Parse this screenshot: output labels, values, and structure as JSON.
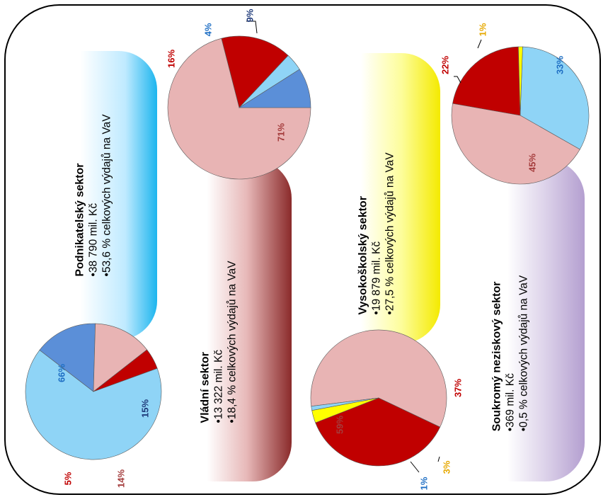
{
  "chart_data": [
    {
      "type": "pie",
      "title": "Podnikatelský sektor",
      "lines": [
        "•38 790 mil. Kč",
        "•53,6 % celkových výdajů na VaV"
      ],
      "slices": [
        {
          "value": 66,
          "label": "66%",
          "color": "#8fd4f6",
          "label_color": "#1f6fc4"
        },
        {
          "value": 15,
          "label": "15%",
          "color": "#5b8fd8",
          "label_color": "#1f3a7a"
        },
        {
          "value": 14,
          "label": "14%",
          "color": "#e8b4b4",
          "label_color": "#a43c3c"
        },
        {
          "value": 5,
          "label": "5%",
          "color": "#c00000",
          "label_color": "#c00000"
        }
      ]
    },
    {
      "type": "pie",
      "title": "Vládní sektor",
      "lines": [
        "•13 322 mil. Kč",
        "•18,4 % celkových výdajů na VaV"
      ],
      "slices": [
        {
          "value": 71,
          "label": "71%",
          "color": "#e8b4b4",
          "label_color": "#a43c3c"
        },
        {
          "value": 16,
          "label": "16%",
          "color": "#c00000",
          "label_color": "#c00000"
        },
        {
          "value": 4,
          "label": "4%",
          "color": "#8fd4f6",
          "label_color": "#1f6fc4"
        },
        {
          "value": 9,
          "label": "9%",
          "color": "#5b8fd8",
          "label_color": "#1f3a7a"
        }
      ]
    },
    {
      "type": "pie",
      "title": "Vysokoškolský sektor",
      "lines": [
        "•19 879 mil. Kč",
        "•27,5 % celkových výdajů na VaV"
      ],
      "slices": [
        {
          "value": 59,
          "label": "59%",
          "color": "#e8b4b4",
          "label_color": "#a43c3c"
        },
        {
          "value": 37,
          "label": "37%",
          "color": "#c00000",
          "label_color": "#c00000"
        },
        {
          "value": 3,
          "label": "3%",
          "color": "#ffff00",
          "label_color": "#e6a800"
        },
        {
          "value": 1,
          "label": "1%",
          "color": "#8fd4f6",
          "label_color": "#1f6fc4"
        }
      ]
    },
    {
      "type": "pie",
      "title": "Soukromý neziskový sektor",
      "lines": [
        "•369 mil. Kč",
        "•0,5 % celkových výdajů na VaV"
      ],
      "slices": [
        {
          "value": 33,
          "label": "33%",
          "color": "#8fd4f6",
          "label_color": "#1f6fc4"
        },
        {
          "value": 45,
          "label": "45%",
          "color": "#e8b4b4",
          "label_color": "#a43c3c"
        },
        {
          "value": 22,
          "label": "22%",
          "color": "#c00000",
          "label_color": "#c00000"
        },
        {
          "value": 1,
          "label": "1%",
          "color": "#ffff00",
          "label_color": "#e6a800"
        }
      ]
    }
  ]
}
